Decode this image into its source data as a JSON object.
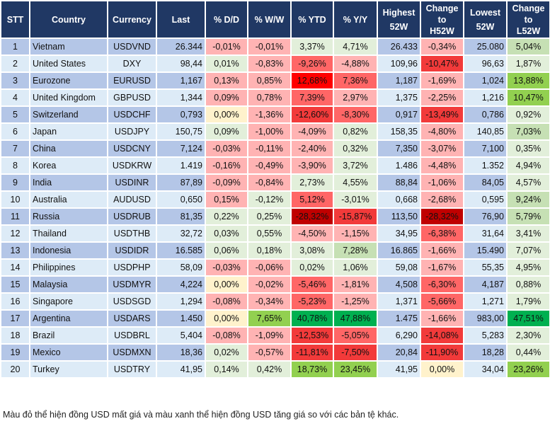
{
  "headers": {
    "stt": "STT",
    "country": "Country",
    "currency": "Currency",
    "last": "Last",
    "dd": "% D/D",
    "ww": "% W/W",
    "ytd": "% YTD",
    "yy": "% Y/Y",
    "high_1": "Highest",
    "high_2": "52W",
    "ch_1": "Change",
    "ch_2": "to",
    "ch_3": "H52W",
    "low_1": "Lowest",
    "low_2": "52W",
    "cl_1": "Change",
    "cl_2": "to",
    "cl_3": "L52W"
  },
  "colors": {
    "header_bg": "#203864",
    "row_odd": "#b4c6e7",
    "row_even": "#ddebf7",
    "light_red": "#ffb3b3",
    "medium_red": "#ff6666",
    "red": "#f23a3a",
    "bright_red": "#ff0000",
    "dark_red": "#c00000",
    "light_green": "#e2efda",
    "medium_green": "#c6e0b4",
    "green": "#92d050",
    "dark_green": "#00b050",
    "neutral_yellow": "#fff2cc"
  },
  "rows": [
    {
      "stt": "1",
      "country": "Vietnam",
      "currency": "USDVND",
      "last": "26.344",
      "dd": "-0,01%",
      "ww": "-0,01%",
      "ytd": "3,37%",
      "yy": "4,71%",
      "high": "26.433",
      "ch": "-0,34%",
      "low": "25.080",
      "cl": "5,04%",
      "colors": [
        "lr",
        "lr",
        "lg",
        "lg",
        "lr",
        "mg"
      ]
    },
    {
      "stt": "2",
      "country": "United States",
      "currency": "DXY",
      "last": "98,44",
      "dd": "0,01%",
      "ww": "-0,83%",
      "ytd": "-9,26%",
      "yy": "-4,88%",
      "high": "109,96",
      "ch": "-10,47%",
      "low": "96,63",
      "cl": "1,87%",
      "colors": [
        "lg",
        "lr",
        "mr",
        "lr",
        "rd",
        "lg"
      ]
    },
    {
      "stt": "3",
      "country": "Eurozone",
      "currency": "EURUSD",
      "last": "1,167",
      "dd": "0,13%",
      "ww": "0,85%",
      "ytd": "12,68%",
      "yy": "7,36%",
      "high": "1,187",
      "ch": "-1,69%",
      "low": "1,024",
      "cl": "13,88%",
      "colors": [
        "lr",
        "lr",
        "br",
        "mr",
        "lr",
        "g"
      ]
    },
    {
      "stt": "4",
      "country": "United Kingdom",
      "currency": "GBPUSD",
      "last": "1,344",
      "dd": "0,09%",
      "ww": "0,78%",
      "ytd": "7,39%",
      "yy": "2,97%",
      "high": "1,375",
      "ch": "-2,25%",
      "low": "1,216",
      "cl": "10,47%",
      "colors": [
        "lr",
        "lr",
        "mr",
        "lr",
        "lr",
        "g"
      ]
    },
    {
      "stt": "5",
      "country": "Switzerland",
      "currency": "USDCHF",
      "last": "0,793",
      "dd": "0,00%",
      "ww": "-1,36%",
      "ytd": "-12,60%",
      "yy": "-8,30%",
      "high": "0,917",
      "ch": "-13,49%",
      "low": "0,786",
      "cl": "0,92%",
      "colors": [
        "y",
        "lr",
        "rd",
        "mr",
        "rd",
        "lg"
      ]
    },
    {
      "stt": "6",
      "country": "Japan",
      "currency": "USDJPY",
      "last": "150,75",
      "dd": "0,09%",
      "ww": "-1,00%",
      "ytd": "-4,09%",
      "yy": "0,82%",
      "high": "158,35",
      "ch": "-4,80%",
      "low": "140,85",
      "cl": "7,03%",
      "colors": [
        "lg",
        "lr",
        "lr",
        "lg",
        "lr",
        "mg"
      ]
    },
    {
      "stt": "7",
      "country": "China",
      "currency": "USDCNY",
      "last": "7,124",
      "dd": "-0,03%",
      "ww": "-0,11%",
      "ytd": "-2,40%",
      "yy": "0,32%",
      "high": "7,350",
      "ch": "-3,07%",
      "low": "7,100",
      "cl": "0,35%",
      "colors": [
        "lr",
        "lr",
        "lr",
        "lg",
        "lr",
        "lg"
      ]
    },
    {
      "stt": "8",
      "country": "Korea",
      "currency": "USDKRW",
      "last": "1.419",
      "dd": "-0,16%",
      "ww": "-0,49%",
      "ytd": "-3,90%",
      "yy": "3,72%",
      "high": "1.486",
      "ch": "-4,48%",
      "low": "1.352",
      "cl": "4,94%",
      "colors": [
        "lr",
        "lr",
        "lr",
        "lg",
        "lr",
        "lg"
      ]
    },
    {
      "stt": "9",
      "country": "India",
      "currency": "USDINR",
      "last": "87,89",
      "dd": "-0,09%",
      "ww": "-0,84%",
      "ytd": "2,73%",
      "yy": "4,55%",
      "high": "88,84",
      "ch": "-1,06%",
      "low": "84,05",
      "cl": "4,57%",
      "colors": [
        "lr",
        "lr",
        "lg",
        "lg",
        "lr",
        "lg"
      ]
    },
    {
      "stt": "10",
      "country": "Australia",
      "currency": "AUDUSD",
      "last": "0,650",
      "dd": "0,15%",
      "ww": "-0,12%",
      "ytd": "5,12%",
      "yy": "-3,01%",
      "high": "0,668",
      "ch": "-2,68%",
      "low": "0,595",
      "cl": "9,24%",
      "colors": [
        "lr",
        "lg",
        "mr",
        "lg",
        "lr",
        "mg"
      ]
    },
    {
      "stt": "11",
      "country": "Russia",
      "currency": "USDRUB",
      "last": "81,35",
      "dd": "0,22%",
      "ww": "0,25%",
      "ytd": "-28,32%",
      "yy": "-15,87%",
      "high": "113,50",
      "ch": "-28,32%",
      "low": "76,90",
      "cl": "5,79%",
      "colors": [
        "lg",
        "lg",
        "dr",
        "rd",
        "dr",
        "mg"
      ]
    },
    {
      "stt": "12",
      "country": "Thailand",
      "currency": "USDTHB",
      "last": "32,72",
      "dd": "0,03%",
      "ww": "0,55%",
      "ytd": "-4,50%",
      "yy": "-1,15%",
      "high": "34,95",
      "ch": "-6,38%",
      "low": "31,64",
      "cl": "3,41%",
      "colors": [
        "lg",
        "lg",
        "lr",
        "lr",
        "mr",
        "lg"
      ]
    },
    {
      "stt": "13",
      "country": "Indonesia",
      "currency": "USDIDR",
      "last": "16.585",
      "dd": "0,06%",
      "ww": "0,18%",
      "ytd": "3,08%",
      "yy": "7,28%",
      "high": "16.865",
      "ch": "-1,66%",
      "low": "15.490",
      "cl": "7,07%",
      "colors": [
        "lg",
        "lg",
        "lg",
        "mg",
        "lr",
        "lg"
      ]
    },
    {
      "stt": "14",
      "country": "Philippines",
      "currency": "USDPHP",
      "last": "58,09",
      "dd": "-0,03%",
      "ww": "-0,06%",
      "ytd": "0,02%",
      "yy": "1,06%",
      "high": "59,08",
      "ch": "-1,67%",
      "low": "55,35",
      "cl": "4,95%",
      "colors": [
        "lr",
        "lr",
        "lg",
        "lg",
        "lr",
        "lg"
      ]
    },
    {
      "stt": "15",
      "country": "Malaysia",
      "currency": "USDMYR",
      "last": "4,224",
      "dd": "0,00%",
      "ww": "-0,02%",
      "ytd": "-5,46%",
      "yy": "-1,81%",
      "high": "4,508",
      "ch": "-6,30%",
      "low": "4,187",
      "cl": "0,88%",
      "colors": [
        "y",
        "lr",
        "mr",
        "lr",
        "mr",
        "lg"
      ]
    },
    {
      "stt": "16",
      "country": "Singapore",
      "currency": "USDSGD",
      "last": "1,294",
      "dd": "-0,08%",
      "ww": "-0,34%",
      "ytd": "-5,23%",
      "yy": "-1,25%",
      "high": "1,371",
      "ch": "-5,66%",
      "low": "1,271",
      "cl": "1,79%",
      "colors": [
        "lr",
        "lr",
        "mr",
        "lr",
        "mr",
        "lg"
      ]
    },
    {
      "stt": "17",
      "country": "Argentina",
      "currency": "USDARS",
      "last": "1.450",
      "dd": "0,00%",
      "ww": "7,65%",
      "ytd": "40,78%",
      "yy": "47,88%",
      "high": "1.475",
      "ch": "-1,66%",
      "low": "983,00",
      "cl": "47,51%",
      "colors": [
        "y",
        "g",
        "dg",
        "dg",
        "lr",
        "dg"
      ]
    },
    {
      "stt": "18",
      "country": "Brazil",
      "currency": "USDBRL",
      "last": "5,404",
      "dd": "-0,08%",
      "ww": "-1,09%",
      "ytd": "-12,53%",
      "yy": "-5,05%",
      "high": "6,290",
      "ch": "-14,08%",
      "low": "5,283",
      "cl": "2,30%",
      "colors": [
        "lr",
        "lr",
        "rd",
        "mr",
        "rd",
        "lg"
      ]
    },
    {
      "stt": "19",
      "country": "Mexico",
      "currency": "USDMXN",
      "last": "18,36",
      "dd": "0,02%",
      "ww": "-0,57%",
      "ytd": "-11,81%",
      "yy": "-7,50%",
      "high": "20,84",
      "ch": "-11,90%",
      "low": "18,28",
      "cl": "0,44%",
      "colors": [
        "lg",
        "lr",
        "rd",
        "rd",
        "rd",
        "lg"
      ]
    },
    {
      "stt": "20",
      "country": "Turkey",
      "currency": "USDTRY",
      "last": "41,95",
      "dd": "0,14%",
      "ww": "0,42%",
      "ytd": "18,73%",
      "yy": "23,45%",
      "high": "41,95",
      "ch": "0,00%",
      "low": "34,04",
      "cl": "23,26%",
      "colors": [
        "lg",
        "lg",
        "g",
        "g",
        "y",
        "g"
      ]
    }
  ],
  "footer": "Màu đỏ thể hiện đồng USD mất giá và màu xanh thể hiện đồng USD tăng giá so với các bản tệ khác."
}
